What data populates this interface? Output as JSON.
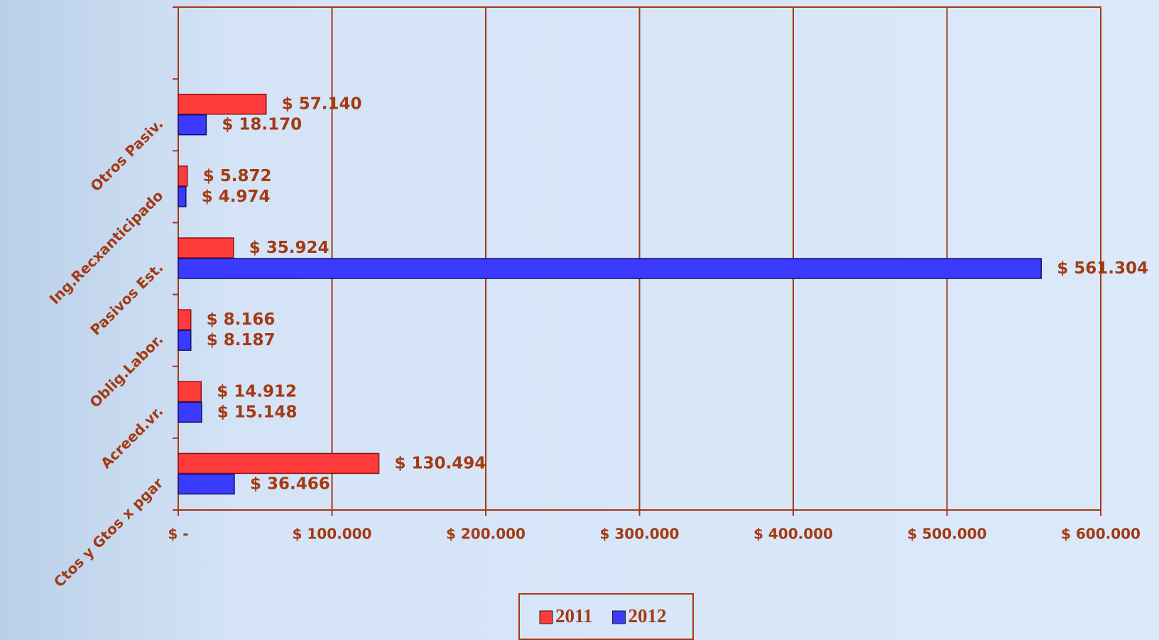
{
  "chart_data": {
    "type": "hbar",
    "categories": [
      "Ctos y Gtos x pgar",
      "Acreed.vr.",
      "Oblig.Labor.",
      "Pasivos Est.",
      "Ing.Recxanticipado",
      "Otros Pasiv.",
      null
    ],
    "series": [
      {
        "name": "2011",
        "color": "#ff3b3b",
        "values": [
          130494,
          14912,
          8166,
          35924,
          5872,
          57140,
          null
        ],
        "value_labels": [
          "$ 130.494",
          "$ 14.912",
          "$ 8.166",
          "$ 35.924",
          "$ 5.872",
          "$ 57.140",
          null
        ]
      },
      {
        "name": "2012",
        "color": "#3b3bff",
        "values": [
          36466,
          15148,
          8187,
          561304,
          4974,
          18170,
          null
        ],
        "value_labels": [
          "$ 36.466",
          "$ 15.148",
          "$ 8.187",
          "$ 561.304",
          "$ 4.974",
          "$ 18.170",
          null
        ]
      }
    ],
    "xlim": [
      0,
      600000
    ],
    "xticks": [
      {
        "value": 0,
        "label": "$ -"
      },
      {
        "value": 100000,
        "label": "$ 100.000"
      },
      {
        "value": 200000,
        "label": "$ 200.000"
      },
      {
        "value": 300000,
        "label": "$ 300.000"
      },
      {
        "value": 400000,
        "label": "$ 400.000"
      },
      {
        "value": 500000,
        "label": "$ 500.000"
      },
      {
        "value": 600000,
        "label": "$ 600.000"
      }
    ],
    "grid": true
  }
}
